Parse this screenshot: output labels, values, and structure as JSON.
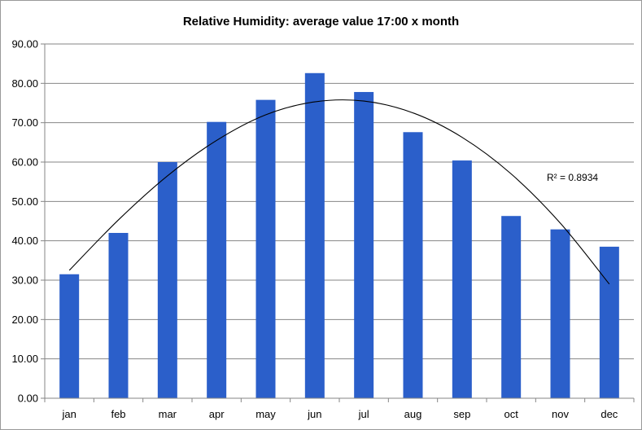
{
  "chart_data": {
    "type": "bar",
    "title": "Relative Humidity: average value 17:00 x month",
    "xlabel": "",
    "ylabel": "",
    "categories": [
      "jan",
      "feb",
      "mar",
      "apr",
      "may",
      "jun",
      "jul",
      "aug",
      "sep",
      "oct",
      "nov",
      "dec"
    ],
    "series": [
      {
        "values": [
          31.5,
          42.0,
          60.0,
          70.2,
          75.8,
          82.6,
          77.8,
          67.6,
          60.4,
          46.3,
          42.9,
          38.5
        ]
      }
    ],
    "ylim": [
      0,
      90
    ],
    "yticks": [
      "0.00",
      "10.00",
      "20.00",
      "30.00",
      "40.00",
      "50.00",
      "60.00",
      "70.00",
      "80.00",
      "90.00"
    ],
    "grid": true,
    "legend": "none",
    "trendline": {
      "type": "polynomial",
      "r_squared_label": "R² = 0.8934",
      "points": [
        {
          "x": "jan",
          "y": 32.5
        },
        {
          "x": "feb",
          "y": 45.3
        },
        {
          "x": "mar",
          "y": 56.5
        },
        {
          "x": "apr",
          "y": 65.5
        },
        {
          "x": "may",
          "y": 72.0
        },
        {
          "x": "jun",
          "y": 75.3
        },
        {
          "x": "jul",
          "y": 75.5
        },
        {
          "x": "aug",
          "y": 72.5
        },
        {
          "x": "sep",
          "y": 66.3
        },
        {
          "x": "oct",
          "y": 57.0
        },
        {
          "x": "nov",
          "y": 44.5
        },
        {
          "x": "dec",
          "y": 29.0
        }
      ]
    },
    "colors": {
      "bar": "#2b5fca",
      "grid": "#868686",
      "axis": "#868686",
      "trend": "#000000"
    }
  }
}
